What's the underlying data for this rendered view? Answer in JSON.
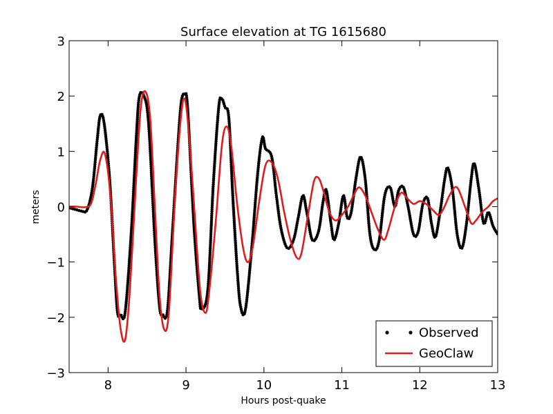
{
  "chart_data": {
    "type": "line",
    "title": "Surface elevation at TG 1615680",
    "xlabel": "Hours post-quake",
    "ylabel": "meters",
    "xlim": [
      7.5,
      13
    ],
    "ylim": [
      -3,
      3
    ],
    "xticks": [
      "8",
      "9",
      "10",
      "11",
      "12",
      "13"
    ],
    "yticks": [
      "−3",
      "−2",
      "−1",
      "0",
      "1",
      "2",
      "3"
    ],
    "grid": false,
    "legend_position": "bottom-right",
    "series": [
      {
        "name": "Observed",
        "style": "black-dots-line",
        "color": "#000000",
        "keypoints": [
          [
            7.5,
            -0.02
          ],
          [
            7.58,
            -0.05
          ],
          [
            7.66,
            -0.08
          ],
          [
            7.73,
            -0.06
          ],
          [
            7.8,
            0.35
          ],
          [
            7.86,
            1.2
          ],
          [
            7.9,
            1.65
          ],
          [
            7.95,
            1.5
          ],
          [
            8.02,
            0.5
          ],
          [
            8.08,
            -1.0
          ],
          [
            8.12,
            -1.9
          ],
          [
            8.16,
            -1.95
          ],
          [
            8.22,
            -1.9
          ],
          [
            8.3,
            -0.4
          ],
          [
            8.36,
            1.2
          ],
          [
            8.4,
            1.98
          ],
          [
            8.46,
            2.0
          ],
          [
            8.52,
            1.5
          ],
          [
            8.6,
            -0.6
          ],
          [
            8.66,
            -1.8
          ],
          [
            8.7,
            -1.95
          ],
          [
            8.76,
            -1.9
          ],
          [
            8.82,
            -0.6
          ],
          [
            8.9,
            1.2
          ],
          [
            8.94,
            1.9
          ],
          [
            8.98,
            2.03
          ],
          [
            9.02,
            1.8
          ],
          [
            9.1,
            -0.3
          ],
          [
            9.17,
            -1.6
          ],
          [
            9.2,
            -1.85
          ],
          [
            9.28,
            -1.5
          ],
          [
            9.35,
            0.4
          ],
          [
            9.42,
            1.8
          ],
          [
            9.46,
            1.95
          ],
          [
            9.5,
            1.8
          ],
          [
            9.55,
            1.6
          ],
          [
            9.6,
            0.2
          ],
          [
            9.66,
            -1.2
          ],
          [
            9.7,
            -1.8
          ],
          [
            9.76,
            -1.88
          ],
          [
            9.84,
            -0.8
          ],
          [
            9.92,
            0.6
          ],
          [
            9.98,
            1.25
          ],
          [
            10.02,
            1.05
          ],
          [
            10.1,
            0.9
          ],
          [
            10.16,
            0.2
          ],
          [
            10.22,
            -0.4
          ],
          [
            10.3,
            -0.75
          ],
          [
            10.38,
            -0.6
          ],
          [
            10.44,
            -0.2
          ],
          [
            10.5,
            0.2
          ],
          [
            10.55,
            -0.1
          ],
          [
            10.62,
            -0.6
          ],
          [
            10.7,
            -0.45
          ],
          [
            10.76,
            0.1
          ],
          [
            10.8,
            0.3
          ],
          [
            10.86,
            -0.3
          ],
          [
            10.9,
            -0.6
          ],
          [
            10.96,
            -0.3
          ],
          [
            11.02,
            0.2
          ],
          [
            11.07,
            -0.2
          ],
          [
            11.12,
            -0.1
          ],
          [
            11.18,
            0.5
          ],
          [
            11.24,
            0.9
          ],
          [
            11.3,
            0.5
          ],
          [
            11.36,
            -0.5
          ],
          [
            11.42,
            -0.78
          ],
          [
            11.48,
            -0.6
          ],
          [
            11.55,
            0.2
          ],
          [
            11.62,
            0.35
          ],
          [
            11.68,
            0.0
          ],
          [
            11.73,
            0.3
          ],
          [
            11.79,
            0.35
          ],
          [
            11.85,
            0.0
          ],
          [
            11.92,
            -0.5
          ],
          [
            11.98,
            -0.45
          ],
          [
            12.04,
            0.05
          ],
          [
            12.1,
            0.15
          ],
          [
            12.15,
            -0.3
          ],
          [
            12.2,
            -0.55
          ],
          [
            12.26,
            -0.1
          ],
          [
            12.32,
            0.5
          ],
          [
            12.36,
            0.7
          ],
          [
            12.42,
            0.3
          ],
          [
            12.48,
            -0.5
          ],
          [
            12.54,
            -0.75
          ],
          [
            12.6,
            -0.3
          ],
          [
            12.66,
            0.5
          ],
          [
            12.7,
            0.78
          ],
          [
            12.76,
            0.3
          ],
          [
            12.82,
            -0.3
          ],
          [
            12.88,
            -0.1
          ],
          [
            12.94,
            -0.35
          ],
          [
            13.0,
            -0.5
          ]
        ]
      },
      {
        "name": "GeoClaw",
        "style": "red-line",
        "color": "#e31a1c",
        "keypoints": [
          [
            7.5,
            0.0
          ],
          [
            7.6,
            0.0
          ],
          [
            7.7,
            -0.01
          ],
          [
            7.78,
            0.05
          ],
          [
            7.84,
            0.4
          ],
          [
            7.9,
            0.85
          ],
          [
            7.96,
            0.95
          ],
          [
            8.03,
            0.2
          ],
          [
            8.1,
            -1.3
          ],
          [
            8.16,
            -2.2
          ],
          [
            8.22,
            -2.4
          ],
          [
            8.28,
            -1.5
          ],
          [
            8.36,
            0.5
          ],
          [
            8.42,
            1.8
          ],
          [
            8.48,
            2.08
          ],
          [
            8.54,
            1.6
          ],
          [
            8.6,
            0.0
          ],
          [
            8.66,
            -1.6
          ],
          [
            8.72,
            -2.22
          ],
          [
            8.78,
            -1.9
          ],
          [
            8.86,
            0.2
          ],
          [
            8.92,
            1.4
          ],
          [
            8.97,
            1.95
          ],
          [
            9.02,
            1.6
          ],
          [
            9.1,
            0.1
          ],
          [
            9.18,
            -1.5
          ],
          [
            9.25,
            -1.92
          ],
          [
            9.3,
            -1.5
          ],
          [
            9.38,
            -0.3
          ],
          [
            9.46,
            1.1
          ],
          [
            9.52,
            1.45
          ],
          [
            9.58,
            1.1
          ],
          [
            9.66,
            0.0
          ],
          [
            9.74,
            -0.8
          ],
          [
            9.8,
            -1.0
          ],
          [
            9.86,
            -0.7
          ],
          [
            9.94,
            0.1
          ],
          [
            10.02,
            0.75
          ],
          [
            10.1,
            0.8
          ],
          [
            10.18,
            0.5
          ],
          [
            10.26,
            -0.1
          ],
          [
            10.34,
            -0.6
          ],
          [
            10.42,
            -0.92
          ],
          [
            10.48,
            -0.85
          ],
          [
            10.56,
            -0.2
          ],
          [
            10.64,
            0.45
          ],
          [
            10.7,
            0.52
          ],
          [
            10.76,
            0.3
          ],
          [
            10.84,
            -0.1
          ],
          [
            10.92,
            -0.25
          ],
          [
            11.0,
            -0.15
          ],
          [
            11.08,
            0.0
          ],
          [
            11.15,
            0.2
          ],
          [
            11.22,
            0.35
          ],
          [
            11.3,
            0.2
          ],
          [
            11.38,
            -0.1
          ],
          [
            11.46,
            -0.4
          ],
          [
            11.54,
            -0.6
          ],
          [
            11.6,
            -0.4
          ],
          [
            11.68,
            0.0
          ],
          [
            11.76,
            0.25
          ],
          [
            11.84,
            0.15
          ],
          [
            11.92,
            0.05
          ],
          [
            12.0,
            0.1
          ],
          [
            12.08,
            0.05
          ],
          [
            12.16,
            -0.05
          ],
          [
            12.24,
            -0.15
          ],
          [
            12.3,
            -0.05
          ],
          [
            12.38,
            0.2
          ],
          [
            12.45,
            0.35
          ],
          [
            12.5,
            0.3
          ],
          [
            12.58,
            0.0
          ],
          [
            12.66,
            -0.3
          ],
          [
            12.72,
            -0.25
          ],
          [
            12.8,
            -0.1
          ],
          [
            12.88,
            0.0
          ],
          [
            12.94,
            0.1
          ],
          [
            13.0,
            0.15
          ]
        ]
      }
    ]
  }
}
